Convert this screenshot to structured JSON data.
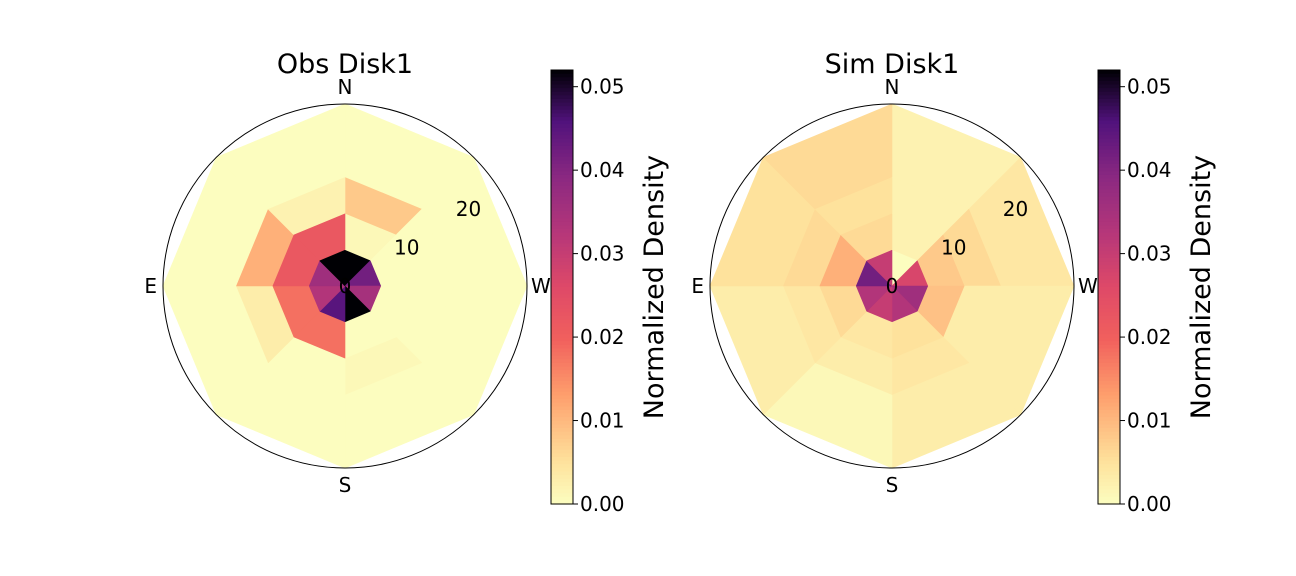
{
  "chart_data": [
    {
      "type": "heatmap",
      "projection": "polar",
      "title": "Obs Disk1",
      "directions": [
        "N",
        "W",
        "S",
        "E"
      ],
      "r_ticks": [
        "0",
        "10",
        "20"
      ],
      "r_edges": [
        0,
        5,
        10,
        15,
        25
      ],
      "sectors_deg_from_north": [
        0,
        45,
        90,
        135,
        180,
        225,
        270,
        315
      ],
      "values": [
        [
          0.052,
          0.042,
          0.035,
          0.052,
          0.045,
          0.033,
          0.036,
          0.052
        ],
        [
          0.001,
          0.0,
          0.0,
          0.0,
          0.018,
          0.018,
          0.022,
          0.022
        ],
        [
          0.008,
          0.0,
          0.0,
          0.001,
          0.0,
          0.003,
          0.011,
          0.002
        ],
        [
          0.0,
          0.0,
          0.0,
          0.0,
          0.0,
          0.0,
          0.0,
          0.0
        ]
      ],
      "colorbar": {
        "label": "Normalized Density",
        "ticks": [
          "0.00",
          "0.01",
          "0.02",
          "0.03",
          "0.04",
          "0.05"
        ],
        "vmin": 0,
        "vmax": 0.052,
        "colormap": "magma_r"
      }
    },
    {
      "type": "heatmap",
      "projection": "polar",
      "title": "Sim Disk1",
      "directions": [
        "N",
        "W",
        "S",
        "E"
      ],
      "r_ticks": [
        "0",
        "10",
        "20"
      ],
      "r_edges": [
        0,
        5,
        10,
        15,
        25
      ],
      "sectors_deg_from_north": [
        0,
        45,
        90,
        135,
        180,
        225,
        270,
        315
      ],
      "values": [
        [
          0.0,
          0.027,
          0.036,
          0.033,
          0.03,
          0.033,
          0.042,
          0.03
        ],
        [
          0.002,
          0.008,
          0.009,
          0.005,
          0.004,
          0.006,
          0.011,
          0.006
        ],
        [
          0.002,
          0.006,
          0.003,
          0.004,
          0.003,
          0.004,
          0.006,
          0.005
        ],
        [
          0.002,
          0.004,
          0.003,
          0.003,
          0.001,
          0.003,
          0.005,
          0.006
        ]
      ],
      "colorbar": {
        "label": "Normalized Density",
        "ticks": [
          "0.00",
          "0.01",
          "0.02",
          "0.03",
          "0.04",
          "0.05"
        ],
        "vmin": 0,
        "vmax": 0.052,
        "colormap": "magma_r"
      }
    }
  ]
}
